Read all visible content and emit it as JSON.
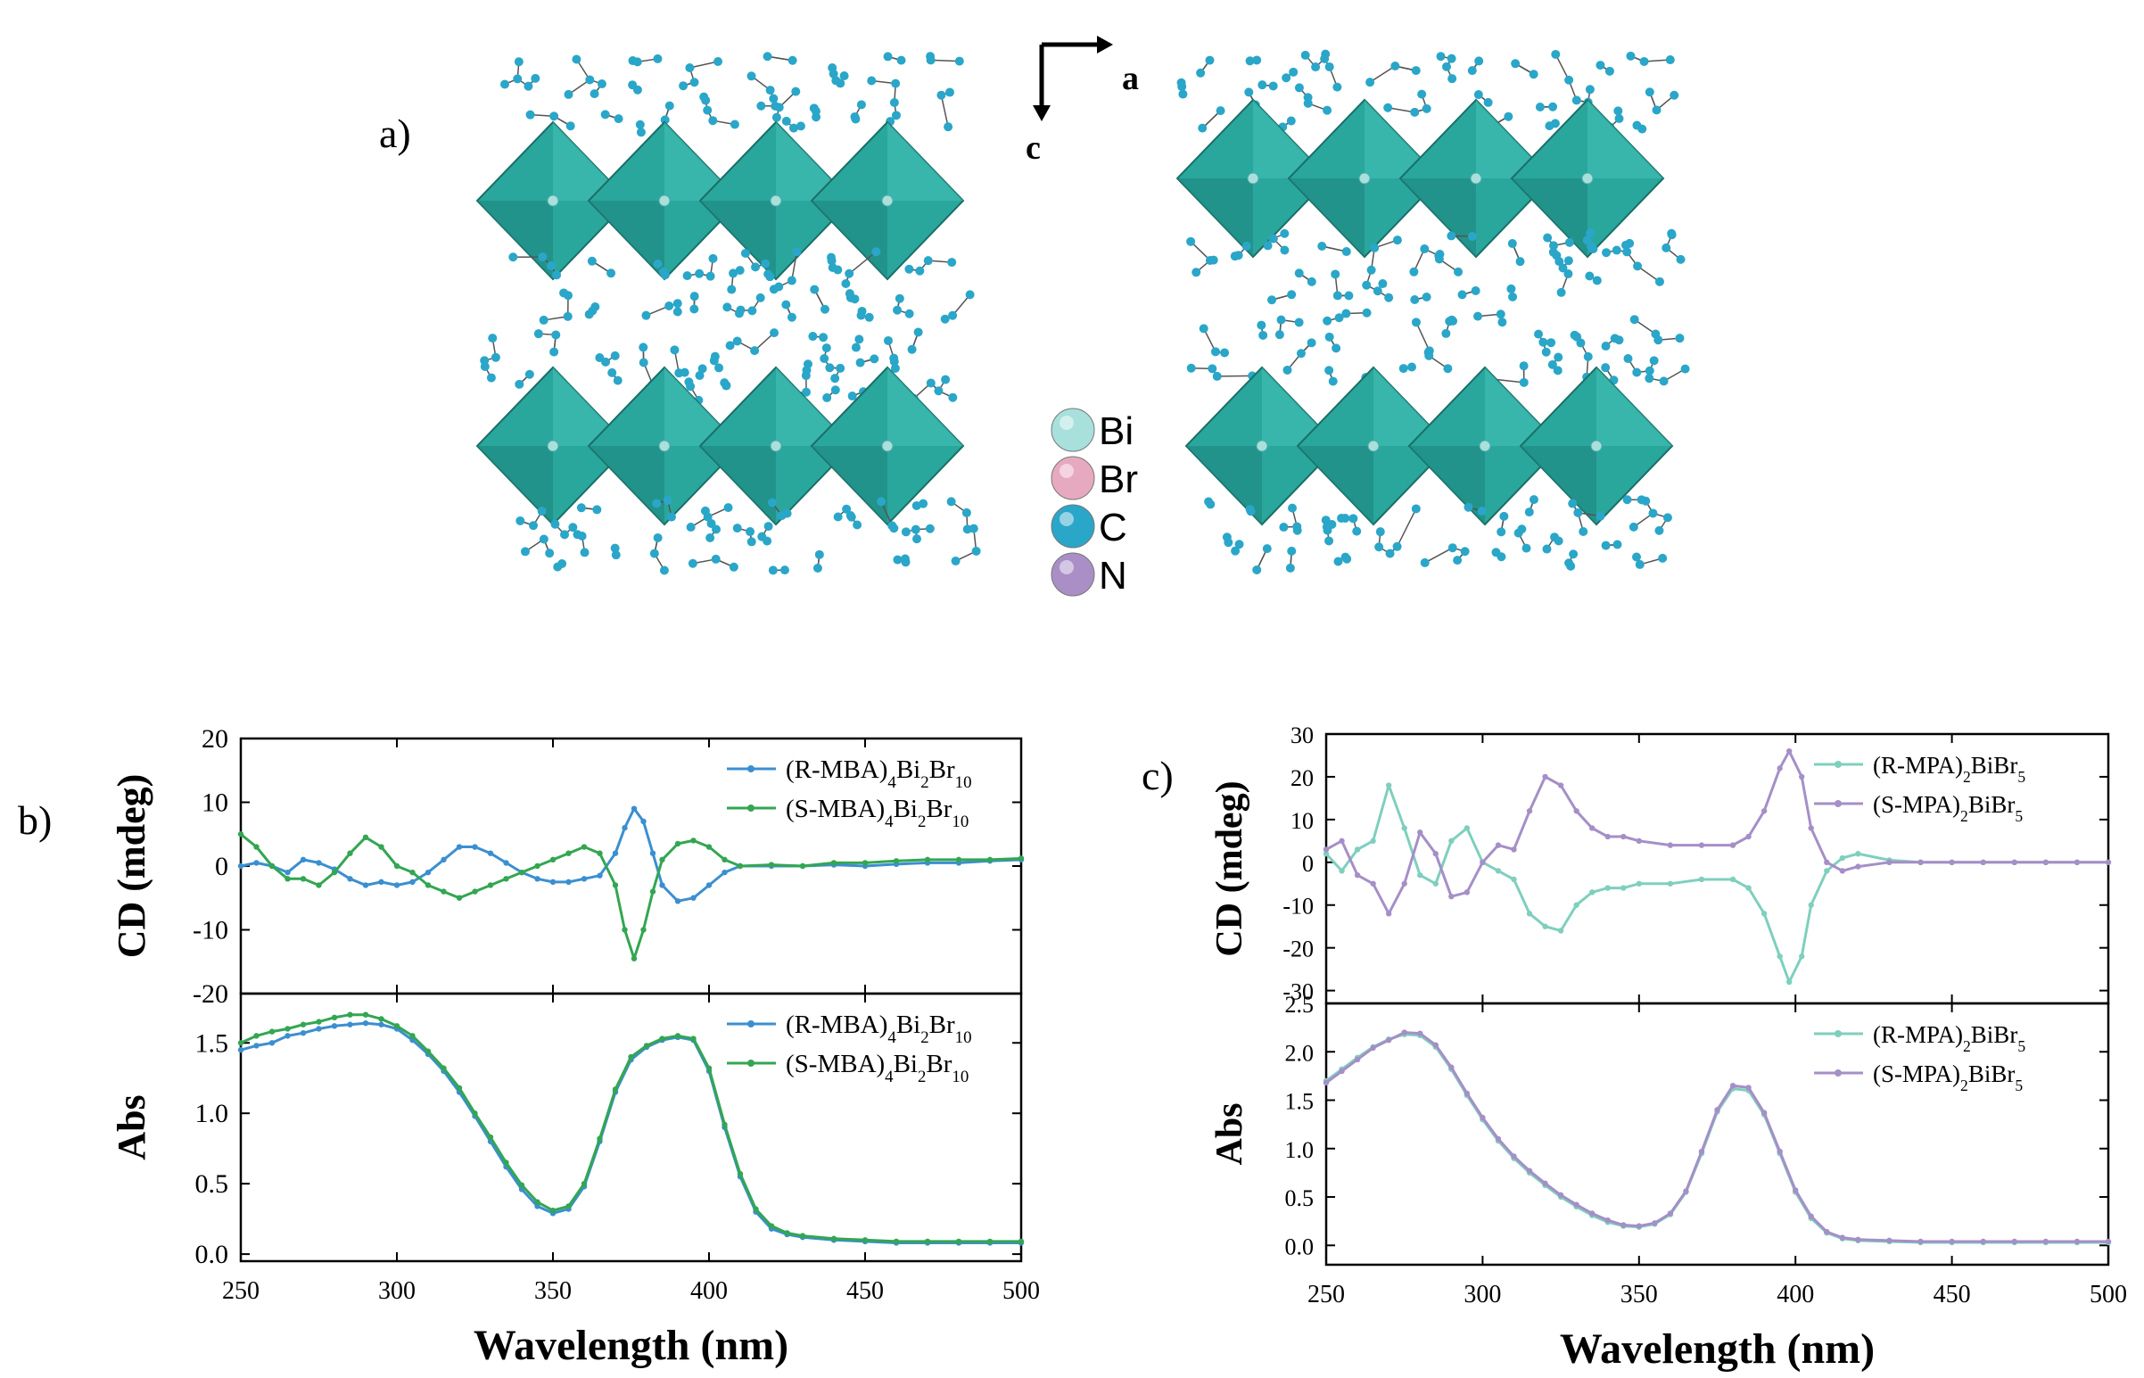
{
  "panel_a": {
    "label": "a)",
    "axes": {
      "horizontal": "a",
      "vertical": "c"
    },
    "legend": [
      "Bi",
      "Br",
      "C",
      "N"
    ],
    "colors": {
      "Bi": "#a8e0dc",
      "Br": "#e7a9bf",
      "C": "#2aa6c9",
      "N": "#a98fc6",
      "octahedron": "#2aa79d"
    }
  },
  "panel_b": {
    "label": "b)"
  },
  "panel_c": {
    "label": "c)"
  },
  "chart_data": [
    {
      "id": "b-cd",
      "type": "line",
      "xlabel": "",
      "ylabel": "CD (mdeg)",
      "xlim": [
        250,
        500
      ],
      "ylim": [
        -20,
        20
      ],
      "yticks": [
        20,
        10,
        0,
        -10,
        -20
      ],
      "yticklabels": [
        "20",
        "10",
        "0",
        "-10",
        "-20"
      ],
      "legend_position": "top-right",
      "x": [
        250,
        255,
        260,
        265,
        270,
        275,
        280,
        285,
        290,
        295,
        300,
        305,
        310,
        315,
        320,
        325,
        330,
        335,
        340,
        345,
        350,
        355,
        360,
        365,
        370,
        373,
        376,
        379,
        382,
        385,
        390,
        395,
        400,
        405,
        410,
        420,
        430,
        440,
        450,
        460,
        470,
        480,
        490,
        500
      ],
      "series": [
        {
          "name": "(R-MBA)4Bi2Br10",
          "label_base": "(R-MBA)",
          "sub1": "4",
          "mid": "Bi",
          "sub2": "2",
          "tail": "Br",
          "sub3": "10",
          "color": "#3b8fd0",
          "values": [
            0,
            0.5,
            0,
            -1,
            1,
            0.5,
            -0.5,
            -2,
            -3,
            -2.5,
            -3,
            -2.5,
            -1,
            1,
            3,
            3,
            2,
            0.5,
            -1,
            -2,
            -2.5,
            -2.5,
            -2,
            -1.5,
            2,
            6,
            9,
            7,
            2,
            -3,
            -5.5,
            -5,
            -3,
            -1,
            0,
            0,
            0,
            0.2,
            0,
            0.3,
            0.5,
            0.5,
            0.8,
            1
          ]
        },
        {
          "name": "(S-MBA)4Bi2Br10",
          "label_base": "(S-MBA)",
          "sub1": "4",
          "mid": "Bi",
          "sub2": "2",
          "tail": "Br",
          "sub3": "10",
          "color": "#33a652",
          "values": [
            5,
            3,
            0,
            -2,
            -2,
            -3,
            -1,
            2,
            4.5,
            3,
            0,
            -1,
            -3,
            -4,
            -5,
            -4,
            -3,
            -2,
            -1,
            0,
            1,
            2,
            3,
            2,
            -3,
            -10,
            -14.5,
            -10,
            -4,
            1,
            3.5,
            4,
            3,
            1,
            0,
            0.2,
            0,
            0.5,
            0.5,
            0.8,
            1,
            1,
            1,
            1.2
          ]
        }
      ]
    },
    {
      "id": "b-abs",
      "type": "line",
      "xlabel": "Wavelength (nm)",
      "ylabel": "Abs",
      "xlim": [
        250,
        500
      ],
      "ylim": [
        -0.05,
        1.85
      ],
      "xticks": [
        250,
        300,
        350,
        400,
        450,
        500
      ],
      "yticks": [
        0.0,
        0.5,
        1.0,
        1.5
      ],
      "yticklabels": [
        "0.0",
        "0.5",
        "1.0",
        "1.5"
      ],
      "legend_position": "top-right",
      "x": [
        250,
        255,
        260,
        265,
        270,
        275,
        280,
        285,
        290,
        295,
        300,
        305,
        310,
        315,
        320,
        325,
        330,
        335,
        340,
        345,
        350,
        355,
        360,
        365,
        370,
        375,
        380,
        385,
        390,
        395,
        400,
        405,
        410,
        415,
        420,
        425,
        430,
        440,
        450,
        460,
        470,
        480,
        490,
        500
      ],
      "series": [
        {
          "name": "(R-MBA)4Bi2Br10",
          "label_base": "(R-MBA)",
          "sub1": "4",
          "mid": "Bi",
          "sub2": "2",
          "tail": "Br",
          "sub3": "10",
          "color": "#3b8fd0",
          "values": [
            1.45,
            1.48,
            1.5,
            1.55,
            1.57,
            1.6,
            1.62,
            1.63,
            1.64,
            1.63,
            1.6,
            1.52,
            1.42,
            1.3,
            1.15,
            0.98,
            0.8,
            0.62,
            0.46,
            0.34,
            0.29,
            0.32,
            0.48,
            0.8,
            1.15,
            1.38,
            1.47,
            1.52,
            1.54,
            1.52,
            1.3,
            0.9,
            0.55,
            0.3,
            0.18,
            0.14,
            0.12,
            0.1,
            0.09,
            0.08,
            0.08,
            0.08,
            0.08,
            0.08
          ]
        },
        {
          "name": "(S-MBA)4Bi2Br10",
          "label_base": "(S-MBA)",
          "sub1": "4",
          "mid": "Bi",
          "sub2": "2",
          "tail": "Br",
          "sub3": "10",
          "color": "#33a652",
          "values": [
            1.5,
            1.55,
            1.58,
            1.6,
            1.63,
            1.65,
            1.68,
            1.7,
            1.7,
            1.67,
            1.62,
            1.55,
            1.44,
            1.32,
            1.18,
            1.0,
            0.83,
            0.65,
            0.49,
            0.37,
            0.31,
            0.34,
            0.5,
            0.82,
            1.17,
            1.4,
            1.48,
            1.53,
            1.55,
            1.53,
            1.32,
            0.92,
            0.57,
            0.32,
            0.2,
            0.15,
            0.13,
            0.11,
            0.1,
            0.09,
            0.09,
            0.09,
            0.09,
            0.09
          ]
        }
      ]
    },
    {
      "id": "c-cd",
      "type": "line",
      "xlabel": "",
      "ylabel": "CD (mdeg)",
      "xlim": [
        250,
        500
      ],
      "ylim": [
        -33,
        30
      ],
      "yticks": [
        30,
        20,
        10,
        0,
        -10,
        -20,
        -30
      ],
      "yticklabels": [
        "30",
        "20",
        "10",
        "0",
        "-10",
        "-20",
        "-30"
      ],
      "legend_position": "top-right",
      "x": [
        250,
        255,
        260,
        265,
        270,
        275,
        280,
        285,
        290,
        295,
        300,
        305,
        310,
        315,
        320,
        325,
        330,
        335,
        340,
        345,
        350,
        360,
        370,
        380,
        385,
        390,
        395,
        398,
        402,
        405,
        410,
        415,
        420,
        430,
        440,
        450,
        460,
        470,
        480,
        490,
        500
      ],
      "series": [
        {
          "name": "(R-MPA)2BiBr5",
          "label_base": "(R-MPA)",
          "sub1": "2",
          "mid": "BiBr",
          "sub2": "5",
          "tail": "",
          "sub3": "",
          "color": "#7fcfbe",
          "values": [
            2,
            -2,
            3,
            5,
            18,
            8,
            -3,
            -5,
            5,
            8,
            0,
            -2,
            -4,
            -12,
            -15,
            -16,
            -10,
            -7,
            -6,
            -6,
            -5,
            -5,
            -4,
            -4,
            -6,
            -12,
            -22,
            -28,
            -22,
            -10,
            -2,
            1,
            2,
            0.5,
            0,
            0,
            0,
            0,
            0,
            0,
            0
          ]
        },
        {
          "name": "(S-MPA)2BiBr5",
          "label_base": "(S-MPA)",
          "sub1": "2",
          "mid": "BiBr",
          "sub2": "5",
          "tail": "",
          "sub3": "",
          "color": "#a58fc7",
          "values": [
            3,
            5,
            -3,
            -5,
            -12,
            -5,
            7,
            2,
            -8,
            -7,
            0,
            4,
            3,
            12,
            20,
            18,
            12,
            8,
            6,
            6,
            5,
            4,
            4,
            4,
            6,
            12,
            22,
            26,
            20,
            8,
            0,
            -2,
            -1,
            0,
            0,
            0,
            0,
            0,
            0,
            0,
            0
          ]
        }
      ]
    },
    {
      "id": "c-abs",
      "type": "line",
      "xlabel": "Wavelength (nm)",
      "ylabel": "Abs",
      "xlim": [
        250,
        500
      ],
      "ylim": [
        -0.2,
        2.5
      ],
      "xticks": [
        250,
        300,
        350,
        400,
        450,
        500
      ],
      "yticks": [
        2.5,
        2.0,
        1.5,
        1.0,
        0.5,
        0.0
      ],
      "yticklabels": [
        "2.5",
        "2.0",
        "1.5",
        "1.0",
        "0.5",
        "0.0"
      ],
      "legend_position": "top-right",
      "x": [
        250,
        255,
        260,
        265,
        270,
        275,
        280,
        285,
        290,
        295,
        300,
        305,
        310,
        315,
        320,
        325,
        330,
        335,
        340,
        345,
        350,
        355,
        360,
        365,
        370,
        375,
        380,
        385,
        390,
        395,
        400,
        405,
        410,
        415,
        420,
        430,
        440,
        450,
        460,
        470,
        480,
        490,
        500
      ],
      "series": [
        {
          "name": "(R-MPA)2BiBr5",
          "label_base": "(R-MPA)",
          "sub1": "2",
          "mid": "BiBr",
          "sub2": "5",
          "tail": "",
          "sub3": "",
          "color": "#7fcfbe",
          "values": [
            1.7,
            1.82,
            1.94,
            2.05,
            2.13,
            2.18,
            2.17,
            2.05,
            1.82,
            1.55,
            1.3,
            1.08,
            0.9,
            0.75,
            0.62,
            0.5,
            0.4,
            0.31,
            0.24,
            0.2,
            0.19,
            0.22,
            0.32,
            0.55,
            0.95,
            1.38,
            1.62,
            1.6,
            1.35,
            0.95,
            0.55,
            0.28,
            0.13,
            0.07,
            0.05,
            0.04,
            0.03,
            0.03,
            0.03,
            0.03,
            0.03,
            0.03,
            0.03
          ]
        },
        {
          "name": "(S-MPA)2BiBr5",
          "label_base": "(S-MPA)",
          "sub1": "2",
          "mid": "BiBr",
          "sub2": "5",
          "tail": "",
          "sub3": "",
          "color": "#a58fc7",
          "values": [
            1.68,
            1.8,
            1.92,
            2.04,
            2.12,
            2.2,
            2.19,
            2.07,
            1.84,
            1.57,
            1.32,
            1.1,
            0.92,
            0.77,
            0.64,
            0.52,
            0.42,
            0.33,
            0.26,
            0.21,
            0.2,
            0.23,
            0.33,
            0.56,
            0.97,
            1.4,
            1.65,
            1.63,
            1.37,
            0.97,
            0.57,
            0.3,
            0.14,
            0.08,
            0.06,
            0.05,
            0.04,
            0.04,
            0.04,
            0.04,
            0.04,
            0.04,
            0.04
          ]
        }
      ]
    }
  ]
}
